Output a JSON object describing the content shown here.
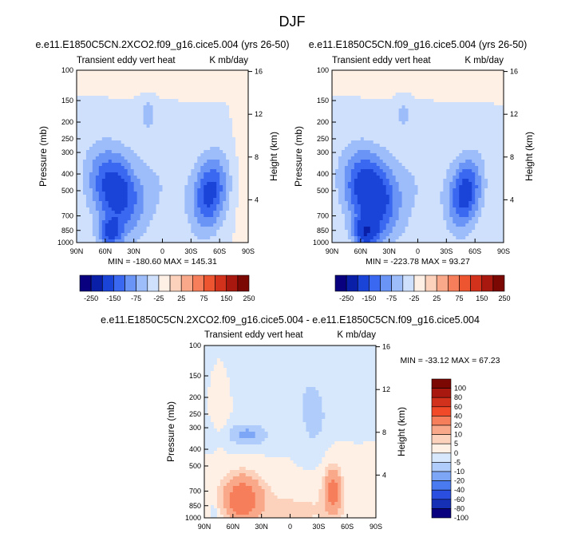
{
  "figure_title": "DJF",
  "chart_data": [
    {
      "type": "heatmap",
      "title": "e.e11.E1850C5CN.2XCO2.f09_g16.cice5.004 (yrs 26-50)",
      "subtitle_left": "Transient eddy vert heat",
      "subtitle_right": "K mb/day",
      "ylabel": "Pressure (mb)",
      "ylabel_right": "Height (km)",
      "x_ticks": [
        "90N",
        "60N",
        "30N",
        "0",
        "30S",
        "60S",
        "90S"
      ],
      "y_ticks": [
        100,
        150,
        200,
        250,
        300,
        400,
        500,
        700,
        850,
        1000
      ],
      "y_right_ticks": [
        16,
        12,
        8,
        4
      ],
      "ylim": [
        1000,
        100
      ],
      "stats": "MIN = -180.60   MAX = 145.31",
      "colorbar": {
        "orientation": "horizontal",
        "colors": [
          "#08007e",
          "#0a1fa8",
          "#1a44d8",
          "#3a68f0",
          "#6a94f6",
          "#9dbcfa",
          "#cfe0fc",
          "#fff0e6",
          "#fcd2bc",
          "#faa88a",
          "#f67e5a",
          "#ec5530",
          "#d2321c",
          "#a8180e",
          "#7c0804"
        ],
        "labels": [
          "-250",
          "-150",
          "-75",
          "-25",
          "25",
          "75",
          "150",
          "250"
        ]
      },
      "blobs": [
        {
          "lat": 50,
          "p": 500,
          "wlat": 26,
          "wlog": 0.55,
          "v": -120,
          "tilt": 0.3
        },
        {
          "lat": 55,
          "p": 880,
          "wlat": 13,
          "wlog": 0.18,
          "v": -90,
          "tilt": 0
        },
        {
          "lat": -50,
          "p": 520,
          "wlat": 18,
          "wlog": 0.5,
          "v": -110,
          "tilt": -0.25
        },
        {
          "lat": 5,
          "p": 450,
          "wlat": 40,
          "wlog": 0.6,
          "v": -22,
          "tilt": 0
        },
        {
          "lat": 15,
          "p": 180,
          "wlat": 8,
          "wlog": 0.2,
          "v": -40,
          "tilt": 0
        },
        {
          "lat": 30,
          "p": 400,
          "wlat": 6,
          "wlog": 0.18,
          "v": 8,
          "tilt": 0
        },
        {
          "lat": 0,
          "p": 110,
          "wlat": 70,
          "wlog": 0.18,
          "v": 12,
          "tilt": 0
        },
        {
          "lat": -80,
          "p": 400,
          "wlat": 8,
          "wlog": 0.9,
          "v": 8,
          "tilt": 0
        }
      ]
    },
    {
      "type": "heatmap",
      "title": "e.e11.E1850C5CN.f09_g16.cice5.004 (yrs 26-50)",
      "subtitle_left": "Transient eddy vert heat",
      "subtitle_right": "K mb/day",
      "ylabel": "Pressure (mb)",
      "ylabel_right": "Height (km)",
      "x_ticks": [
        "90N",
        "60N",
        "30N",
        "0",
        "30S",
        "60S",
        "90S"
      ],
      "y_ticks": [
        100,
        150,
        200,
        250,
        300,
        400,
        500,
        700,
        850,
        1000
      ],
      "y_right_ticks": [
        16,
        12,
        8,
        4
      ],
      "ylim": [
        1000,
        100
      ],
      "stats": "MIN = -223.78   MAX = 93.27",
      "colorbar": {
        "orientation": "horizontal",
        "colors": [
          "#08007e",
          "#0a1fa8",
          "#1a44d8",
          "#3a68f0",
          "#6a94f6",
          "#9dbcfa",
          "#cfe0fc",
          "#fff0e6",
          "#fcd2bc",
          "#faa88a",
          "#f67e5a",
          "#ec5530",
          "#d2321c",
          "#a8180e",
          "#7c0804"
        ],
        "labels": [
          "-250",
          "-150",
          "-75",
          "-25",
          "25",
          "75",
          "150",
          "250"
        ]
      },
      "blobs": [
        {
          "lat": 50,
          "p": 520,
          "wlat": 26,
          "wlog": 0.55,
          "v": -140,
          "tilt": 0.3
        },
        {
          "lat": 55,
          "p": 880,
          "wlat": 13,
          "wlog": 0.18,
          "v": -110,
          "tilt": 0
        },
        {
          "lat": -50,
          "p": 520,
          "wlat": 17,
          "wlog": 0.48,
          "v": -115,
          "tilt": -0.25
        },
        {
          "lat": 5,
          "p": 450,
          "wlat": 40,
          "wlog": 0.6,
          "v": -22,
          "tilt": 0
        },
        {
          "lat": 15,
          "p": 180,
          "wlat": 8,
          "wlog": 0.2,
          "v": -35,
          "tilt": 0
        },
        {
          "lat": 0,
          "p": 110,
          "wlat": 70,
          "wlog": 0.18,
          "v": 12,
          "tilt": 0
        }
      ]
    },
    {
      "type": "heatmap",
      "title": "e.e11.E1850C5CN.2XCO2.f09_g16.cice5.004 - e.e11.E1850C5CN.f09_g16.cice5.004",
      "subtitle_left": "Transient eddy vert heat",
      "subtitle_right": "K mb/day",
      "ylabel": "Pressure (mb)",
      "ylabel_right": "Height (km)",
      "x_ticks": [
        "90N",
        "60N",
        "30N",
        "0",
        "30S",
        "60S",
        "90S"
      ],
      "y_ticks": [
        100,
        150,
        200,
        250,
        300,
        400,
        500,
        700,
        850,
        1000
      ],
      "y_right_ticks": [
        16,
        12,
        8,
        4
      ],
      "ylim": [
        1000,
        100
      ],
      "stats": "MIN = -33.12   MAX = 67.23",
      "colorbar": {
        "orientation": "vertical",
        "colors": [
          "#7c0804",
          "#a8180e",
          "#d2321c",
          "#f04a28",
          "#f67e5a",
          "#faa88a",
          "#fcd2bc",
          "#fff0e6",
          "#d8e8fc",
          "#b0ccfa",
          "#7ea6f6",
          "#4a7af0",
          "#2a4fe0",
          "#1530b4",
          "#08007e"
        ],
        "labels": [
          "100",
          "80",
          "60",
          "40",
          "20",
          "10",
          "5",
          "0",
          "-5",
          "-10",
          "-20",
          "-40",
          "-60",
          "-80",
          "-100"
        ]
      },
      "blobs": [
        {
          "lat": 50,
          "p": 740,
          "wlat": 20,
          "wlog": 0.28,
          "v": 26,
          "tilt": 0
        },
        {
          "lat": 50,
          "p": 850,
          "wlat": 10,
          "wlog": 0.12,
          "v": 14,
          "tilt": 0
        },
        {
          "lat": -45,
          "p": 690,
          "wlat": 9,
          "wlog": 0.3,
          "v": 24,
          "tilt": 0
        },
        {
          "lat": 0,
          "p": 900,
          "wlat": 70,
          "wlog": 0.3,
          "v": 6,
          "tilt": 0
        },
        {
          "lat": 45,
          "p": 330,
          "wlat": 22,
          "wlog": 0.15,
          "v": -12,
          "tilt": 0
        },
        {
          "lat": -25,
          "p": 260,
          "wlat": 14,
          "wlog": 0.4,
          "v": -8,
          "tilt": 0
        },
        {
          "lat": 0,
          "p": 150,
          "wlat": 35,
          "wlog": 0.4,
          "v": -4,
          "tilt": 0
        },
        {
          "lat": 72,
          "p": 250,
          "wlat": 6,
          "wlog": 0.35,
          "v": 3,
          "tilt": 0
        },
        {
          "lat": 80,
          "p": 920,
          "wlat": 4,
          "wlog": 0.08,
          "v": -8,
          "tilt": 0
        }
      ]
    }
  ]
}
